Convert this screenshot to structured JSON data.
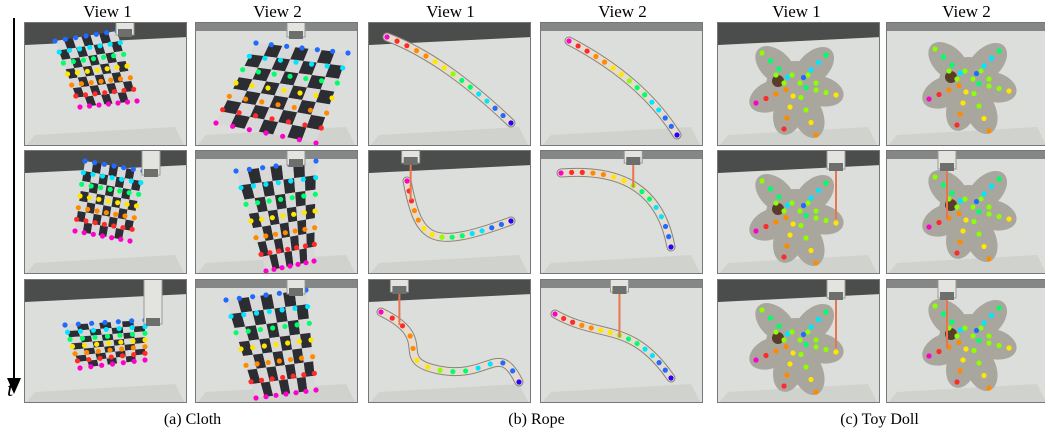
{
  "figure": {
    "time_label": "t",
    "groups": [
      {
        "caption": "(a) Cloth",
        "object": "cloth",
        "views": [
          "View 1",
          "View 2"
        ]
      },
      {
        "caption": "(b) Rope",
        "object": "rope",
        "views": [
          "View 1",
          "View 2"
        ]
      },
      {
        "caption": "(c) Toy Doll",
        "object": "doll",
        "views": [
          "View 1",
          "View 2"
        ]
      }
    ]
  },
  "colors": {
    "table_light": "#dcdedb",
    "table_dark": "#b9bcb8",
    "background_dark": "#4a4d4b",
    "robot_arm": "#e3e3df",
    "laser": "#e8754d",
    "cloth_check_dark": "#2b2d33",
    "cloth_check_light": "#d8d8d8",
    "rope": "#e6ddd0",
    "doll": "#a9a69e",
    "keypoint_palette": [
      "#ff00c8",
      "#ff2a2a",
      "#ff8a00",
      "#ffe600",
      "#8cff00",
      "#00ff6a",
      "#00e6ff",
      "#1f6bff",
      "#2a00ff"
    ]
  }
}
